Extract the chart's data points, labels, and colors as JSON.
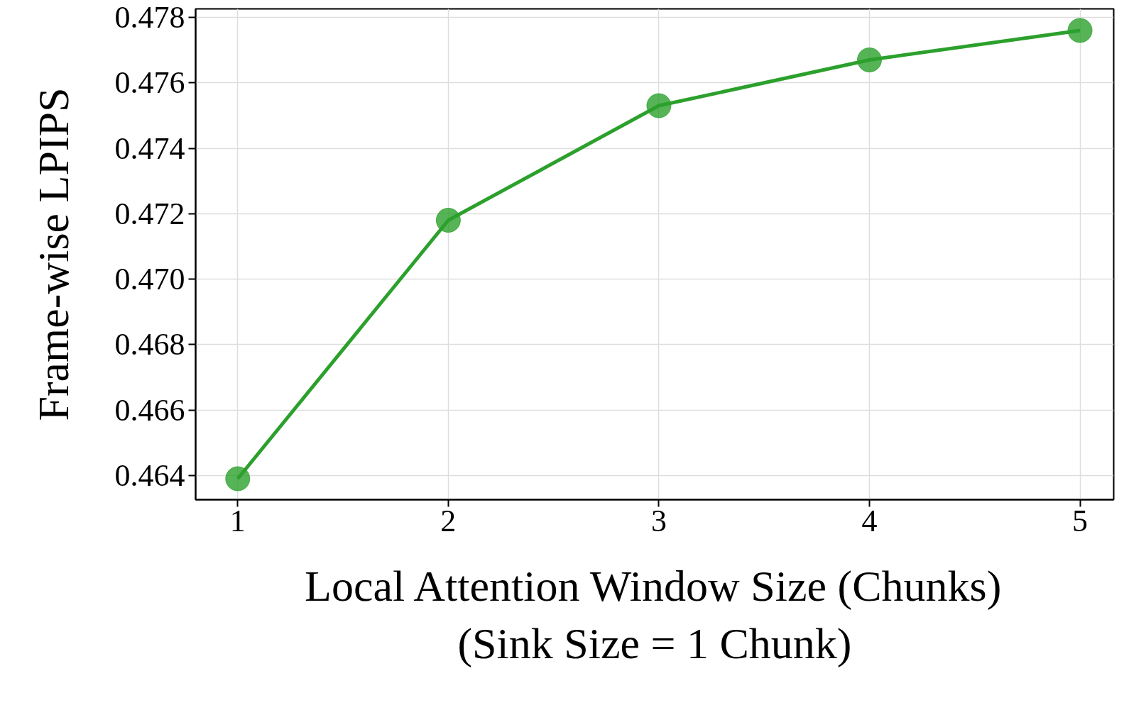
{
  "chart_data": {
    "type": "line",
    "xlabel": "Local Attention Window Size (Chunks)\n(Sink Size = 1 Chunk)",
    "ylabel": "Frame-wise LPIPS",
    "x": [
      1,
      2,
      3,
      4,
      5
    ],
    "series": [
      {
        "color": "#2ca02c",
        "values": [
          0.4639,
          0.4718,
          0.4753,
          0.4767,
          0.4776
        ]
      }
    ],
    "xlim": [
      0.8,
      5.16
    ],
    "ylim": [
      0.46326,
      0.47826
    ],
    "xticks": [
      1,
      2,
      3,
      4,
      5
    ],
    "yticks": [
      0.464,
      0.466,
      0.468,
      {
        "value": 0.47,
        "label": "0.470"
      },
      0.472,
      0.474,
      0.476,
      0.478
    ],
    "grid": true,
    "marker": "circle",
    "line_style": "solid"
  }
}
